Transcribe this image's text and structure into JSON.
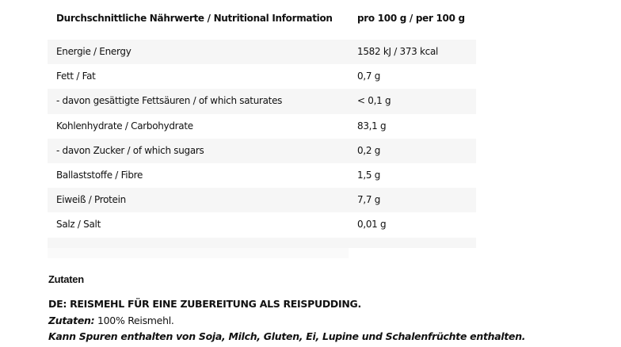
{
  "table": {
    "header": [
      "Durchschnittliche Nährwerte / Nutritional Information",
      "pro 100 g / per 100 g"
    ],
    "rows": [
      [
        "Energie / Energy",
        "1582 kJ / 373 kcal"
      ],
      [
        "Fett / Fat",
        "0,7 g"
      ],
      [
        "- davon gesättigte Fettsäuren / of which saturates",
        "< 0,1 g"
      ],
      [
        "Kohlenhydrate / Carbohydrate",
        "83,1 g"
      ],
      [
        "- davon Zucker / of which sugars",
        "0,2 g"
      ],
      [
        "Ballaststoffe / Fibre",
        "1,5 g"
      ],
      [
        "Eiweiß / Protein",
        "7,7 g"
      ],
      [
        "Salz / Salt",
        "0,01 g"
      ]
    ]
  },
  "ingredients": {
    "heading": "Zutaten",
    "title": "DE: REISMEHL FÜR EINE ZUBEREITUNG ALS REISPUDDING.",
    "label": "Zutaten:",
    "text": " 100% Reismehl.",
    "allergens": "Kann Spuren enthalten von Soja, Milch, Gluten, Ei, Lupine und Schalenfrüchte enthalten."
  }
}
